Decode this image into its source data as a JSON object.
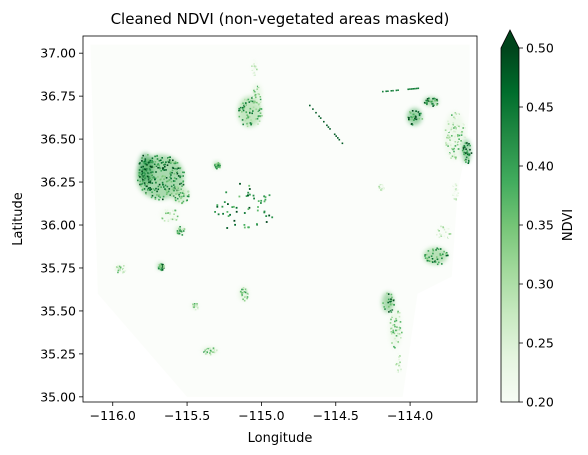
{
  "chart_data": {
    "type": "heatmap",
    "title": "Cleaned NDVI (non-vegetated areas masked)",
    "xlabel": "Longitude",
    "ylabel": "Latitude",
    "colorbar_label": "NDVI",
    "xlim": [
      -116.2,
      -113.55
    ],
    "ylim": [
      34.97,
      37.1
    ],
    "xticks": [
      -116.0,
      -115.5,
      -115.0,
      -114.5,
      -114.0
    ],
    "xtick_labels": [
      "−116.0",
      "−115.5",
      "−115.0",
      "−114.5",
      "−114.0"
    ],
    "yticks": [
      35.0,
      35.25,
      35.5,
      35.75,
      36.0,
      36.25,
      36.5,
      36.75,
      37.0
    ],
    "ytick_labels": [
      "35.00",
      "35.25",
      "35.50",
      "35.75",
      "36.00",
      "36.25",
      "36.50",
      "36.75",
      "37.00"
    ],
    "colorbar": {
      "min": 0.2,
      "max": 0.5,
      "extend": "max",
      "colormap": "Greens",
      "ticks": [
        0.2,
        0.25,
        0.3,
        0.35,
        0.4,
        0.45,
        0.5
      ],
      "tick_labels": [
        "0.20",
        "0.25",
        "0.30",
        "0.35",
        "0.40",
        "0.45",
        "0.50"
      ]
    },
    "grid": false,
    "vegetation_patches": [
      {
        "lon": -115.68,
        "lat": 36.28,
        "rx": 0.16,
        "ry": 0.13,
        "ndvi": 0.46
      },
      {
        "lon": -115.78,
        "lat": 36.33,
        "rx": 0.05,
        "ry": 0.09,
        "ndvi": 0.5
      },
      {
        "lon": -115.55,
        "lat": 36.18,
        "rx": 0.06,
        "ry": 0.05,
        "ndvi": 0.4
      },
      {
        "lon": -115.62,
        "lat": 36.06,
        "rx": 0.06,
        "ry": 0.04,
        "ndvi": 0.32
      },
      {
        "lon": -115.55,
        "lat": 35.97,
        "rx": 0.03,
        "ry": 0.025,
        "ndvi": 0.38
      },
      {
        "lon": -115.08,
        "lat": 36.66,
        "rx": 0.08,
        "ry": 0.09,
        "ndvi": 0.42
      },
      {
        "lon": -115.03,
        "lat": 36.76,
        "rx": 0.03,
        "ry": 0.06,
        "ndvi": 0.36
      },
      {
        "lon": -115.05,
        "lat": 36.92,
        "rx": 0.02,
        "ry": 0.05,
        "ndvi": 0.26
      },
      {
        "lon": -113.97,
        "lat": 36.63,
        "rx": 0.05,
        "ry": 0.05,
        "ndvi": 0.48
      },
      {
        "lon": -113.86,
        "lat": 36.72,
        "rx": 0.05,
        "ry": 0.025,
        "ndvi": 0.46
      },
      {
        "lon": -113.7,
        "lat": 36.52,
        "rx": 0.07,
        "ry": 0.14,
        "ndvi": 0.34
      },
      {
        "lon": -113.62,
        "lat": 36.43,
        "rx": 0.03,
        "ry": 0.07,
        "ndvi": 0.48
      },
      {
        "lon": -113.83,
        "lat": 35.82,
        "rx": 0.08,
        "ry": 0.05,
        "ndvi": 0.44
      },
      {
        "lon": -113.78,
        "lat": 35.96,
        "rx": 0.05,
        "ry": 0.04,
        "ndvi": 0.3
      },
      {
        "lon": -114.15,
        "lat": 35.55,
        "rx": 0.04,
        "ry": 0.06,
        "ndvi": 0.46
      },
      {
        "lon": -114.1,
        "lat": 35.4,
        "rx": 0.04,
        "ry": 0.12,
        "ndvi": 0.34
      },
      {
        "lon": -114.08,
        "lat": 35.2,
        "rx": 0.02,
        "ry": 0.06,
        "ndvi": 0.28
      },
      {
        "lon": -115.35,
        "lat": 35.27,
        "rx": 0.05,
        "ry": 0.02,
        "ndvi": 0.36
      },
      {
        "lon": -115.12,
        "lat": 35.6,
        "rx": 0.03,
        "ry": 0.04,
        "ndvi": 0.36
      },
      {
        "lon": -115.95,
        "lat": 35.75,
        "rx": 0.04,
        "ry": 0.025,
        "ndvi": 0.32
      },
      {
        "lon": -115.45,
        "lat": 35.53,
        "rx": 0.025,
        "ry": 0.02,
        "ndvi": 0.34
      },
      {
        "lon": -115.68,
        "lat": 35.76,
        "rx": 0.02,
        "ry": 0.02,
        "ndvi": 0.46
      },
      {
        "lon": -115.3,
        "lat": 36.35,
        "rx": 0.02,
        "ry": 0.02,
        "ndvi": 0.45
      },
      {
        "lon": -114.2,
        "lat": 36.22,
        "rx": 0.02,
        "ry": 0.02,
        "ndvi": 0.3
      },
      {
        "lon": -113.7,
        "lat": 36.2,
        "rx": 0.02,
        "ry": 0.05,
        "ndvi": 0.26
      }
    ],
    "scattered_cluster": {
      "lon": -115.12,
      "lat": 36.1,
      "rx": 0.2,
      "ry": 0.15,
      "ndvi": 0.45,
      "count": 55
    },
    "linear_features": [
      {
        "from": [
          -114.68,
          36.7
        ],
        "to": [
          -114.45,
          36.47
        ],
        "ndvi": 0.48
      },
      {
        "from": [
          -114.2,
          36.78
        ],
        "to": [
          -113.95,
          36.8
        ],
        "ndvi": 0.44
      }
    ],
    "valid_region": [
      [
        -116.15,
        37.05
      ],
      [
        -113.6,
        37.05
      ],
      [
        -113.6,
        36.7
      ],
      [
        -113.62,
        36.45
      ],
      [
        -113.68,
        36.2
      ],
      [
        -113.72,
        35.7
      ],
      [
        -113.95,
        35.6
      ],
      [
        -114.05,
        35.0
      ],
      [
        -115.5,
        35.0
      ],
      [
        -116.1,
        35.6
      ]
    ]
  }
}
